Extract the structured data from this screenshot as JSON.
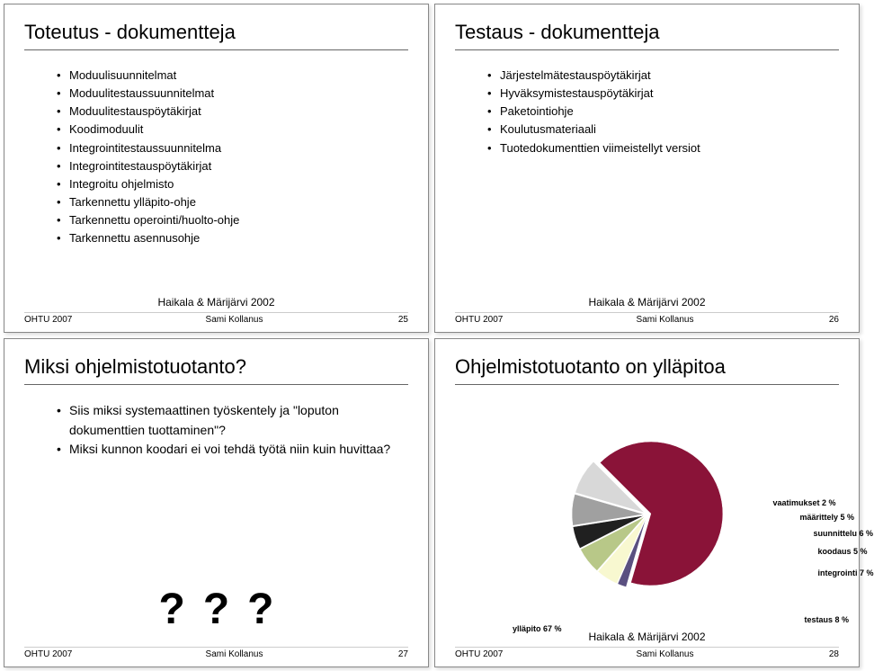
{
  "slides": {
    "tl": {
      "title": "Toteutus - dokumentteja",
      "bullets": [
        "Moduulisuunnitelmat",
        "Moduulitestaussuunnitelmat",
        "Moduulitestauspöytäkirjat",
        "Koodimoduulit",
        "Integrointitestaussuunnitelma",
        "Integrointitestauspöytäkirjat",
        "Integroitu ohjelmisto",
        "Tarkennettu ylläpito-ohje",
        "Tarkennettu operointi/huolto-ohje",
        "Tarkennettu asennusohje"
      ],
      "ref": "Haikala & Märijärvi 2002",
      "footer_l": "OHTU 2007",
      "footer_m": "Sami Kollanus",
      "footer_r": "25"
    },
    "tr": {
      "title": "Testaus - dokumentteja",
      "bullets": [
        "Järjestelmätestauspöytäkirjat",
        "Hyväksymistestauspöytäkirjat",
        "Paketointiohje",
        "Koulutusmateriaali",
        "Tuotedokumenttien viimeistellyt versiot"
      ],
      "ref": "Haikala & Märijärvi 2002",
      "footer_l": "OHTU 2007",
      "footer_m": "Sami Kollanus",
      "footer_r": "26"
    },
    "bl": {
      "title": "Miksi ohjelmistotuotanto?",
      "bullets": [
        "Siis miksi systemaattinen työskentely ja \"loputon dokumenttien tuottaminen\"?",
        "Miksi kunnon koodari ei voi tehdä työtä niin kuin huvittaa?"
      ],
      "qmarks": [
        "?",
        "?",
        "?"
      ],
      "footer_l": "OHTU 2007",
      "footer_m": "Sami Kollanus",
      "footer_r": "27"
    },
    "br": {
      "title": "Ohjelmistotuotanto on ylläpitoa",
      "chart": {
        "type": "pie",
        "slices": [
          {
            "label": "ylläpito 67 %",
            "value": 67,
            "color": "#8a1338"
          },
          {
            "label": "vaatimukset 2 %",
            "value": 2,
            "color": "#5a5080"
          },
          {
            "label": "määrittely 5 %",
            "value": 5,
            "color": "#f8f8d0"
          },
          {
            "label": "suunnittelu 6 %",
            "value": 6,
            "color": "#b8c888"
          },
          {
            "label": "koodaus 5 %",
            "value": 5,
            "color": "#202020"
          },
          {
            "label": "integrointi 7 %",
            "value": 7,
            "color": "#a0a0a0"
          },
          {
            "label": "testaus 8 %",
            "value": 8,
            "color": "#d8d8d8"
          }
        ],
        "start_angle": -135,
        "background": "#ffffff",
        "explode": 4
      },
      "ref": "Haikala & Märijärvi 2002",
      "footer_l": "OHTU 2007",
      "footer_m": "Sami Kollanus",
      "footer_r": "28"
    }
  }
}
